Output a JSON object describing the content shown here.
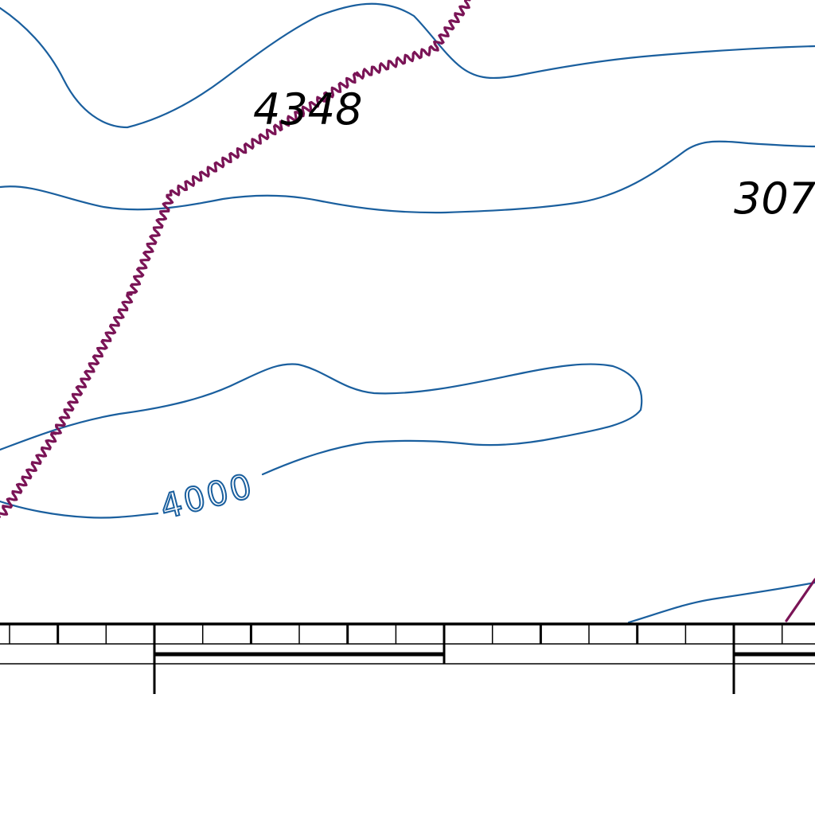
{
  "map": {
    "spot_elevations": [
      {
        "id": "summit",
        "label": "4348"
      },
      {
        "id": "east",
        "label": "307"
      }
    ],
    "contour_labels": [
      {
        "id": "index-contour",
        "label": "4000"
      }
    ],
    "colors": {
      "contour": "#1a5f9e",
      "boundary": "#7a1456",
      "text": "#000000",
      "frame": "#000000",
      "background": "#ffffff"
    },
    "features": {
      "contours": "contour-lines",
      "boundary": "wavy-boundary-line",
      "scale_bar": "neatline-scale-bar"
    }
  }
}
